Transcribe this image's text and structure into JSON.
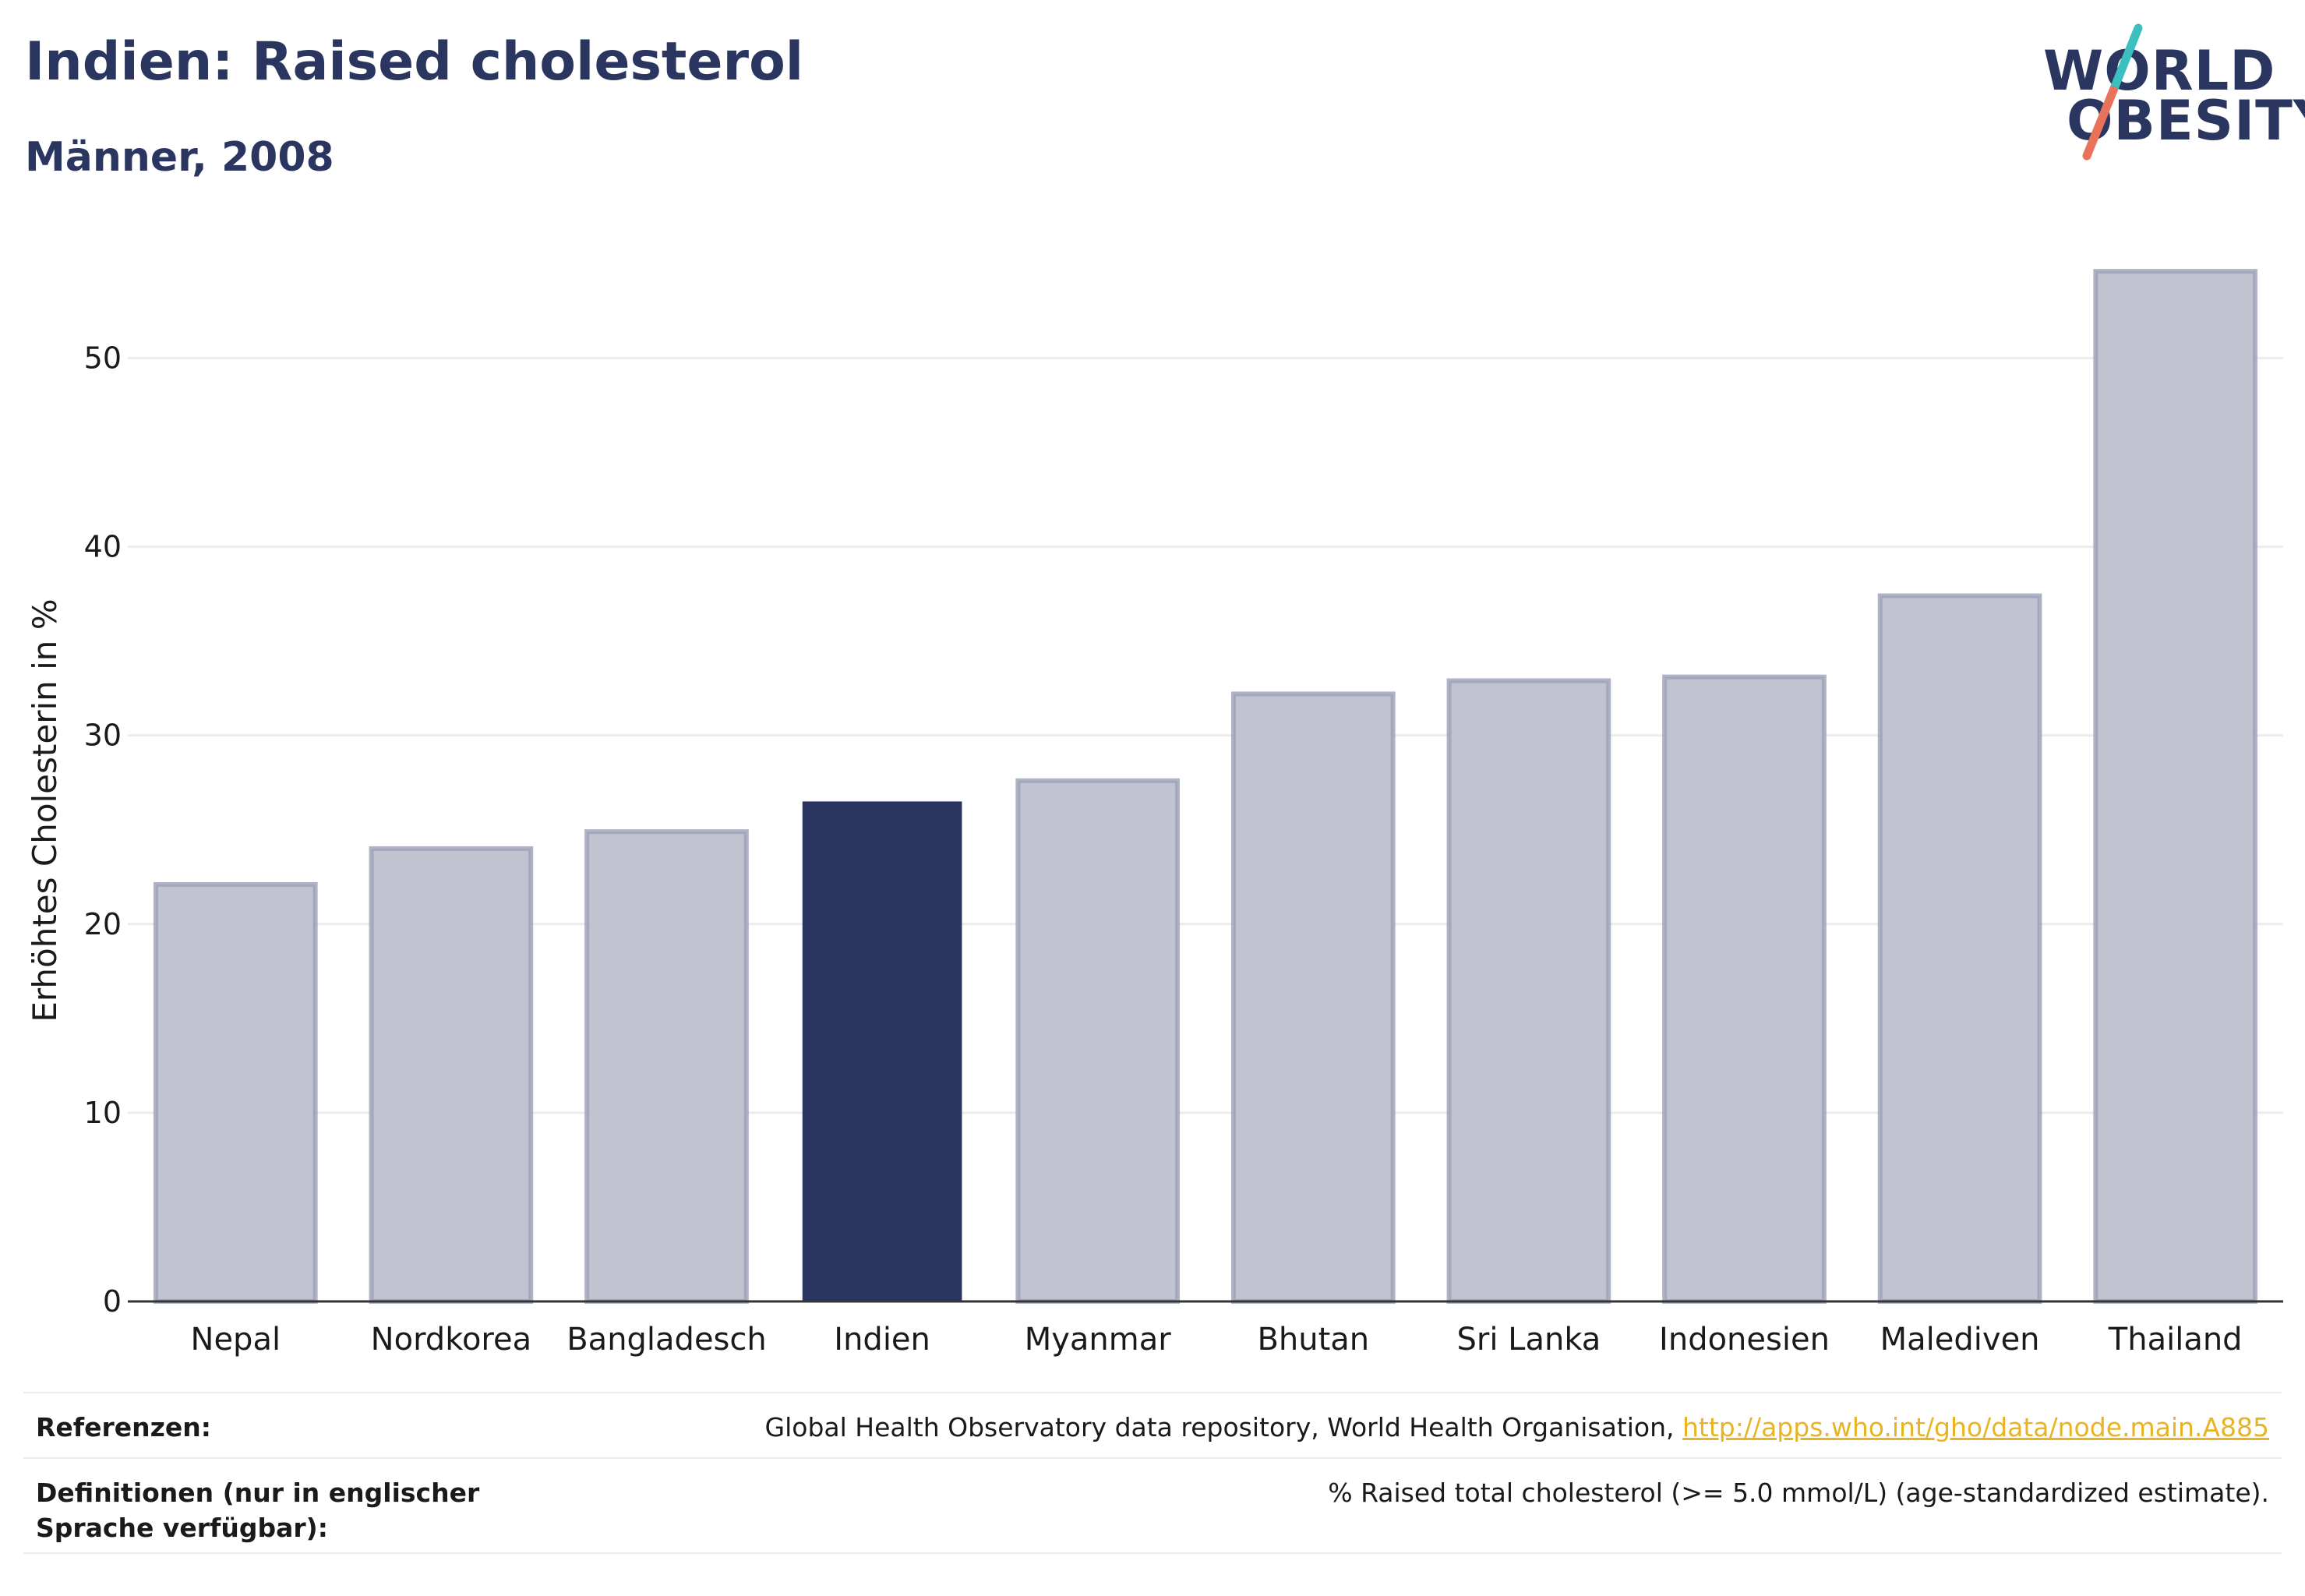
{
  "header": {
    "title": "Indien: Raised cholesterol",
    "subtitle": "Männer, 2008"
  },
  "logo": {
    "line1": "WORLD",
    "line2": "OBESITY",
    "accent_teal": "#3bbfbf",
    "accent_red": "#e8735a"
  },
  "chart_data": {
    "type": "bar",
    "categories": [
      "Nepal",
      "Nordkorea",
      "Bangladesch",
      "Indien",
      "Myanmar",
      "Bhutan",
      "Sri Lanka",
      "Indonesien",
      "Malediven",
      "Thailand"
    ],
    "values": [
      22.1,
      24.0,
      24.9,
      26.5,
      27.6,
      32.2,
      32.9,
      33.1,
      37.4,
      54.6
    ],
    "highlight": "Indien",
    "title": "",
    "xlabel": "",
    "ylabel": "Erhöhtes Cholesterin in %",
    "ylim": [
      0,
      57
    ],
    "yticks": [
      0,
      10,
      20,
      30,
      40,
      50
    ],
    "grid": true,
    "colors": {
      "bar": "#c1c4d0",
      "bar_border": "#9aa0b6",
      "highlight": "#2a365f",
      "grid": "#ececec",
      "axis": "#333333"
    }
  },
  "footer": {
    "references_label": "Referenzen:",
    "references_text": "Global Health Observatory data repository, World Health Organisation, ",
    "references_link": "http://apps.who.int/gho/data/node.main.A885",
    "definitions_label": "Definitionen (nur in englischer Sprache verfügbar):",
    "definitions_text": "% Raised total cholesterol (>= 5.0 mmol/L) (age-standardized estimate)."
  }
}
